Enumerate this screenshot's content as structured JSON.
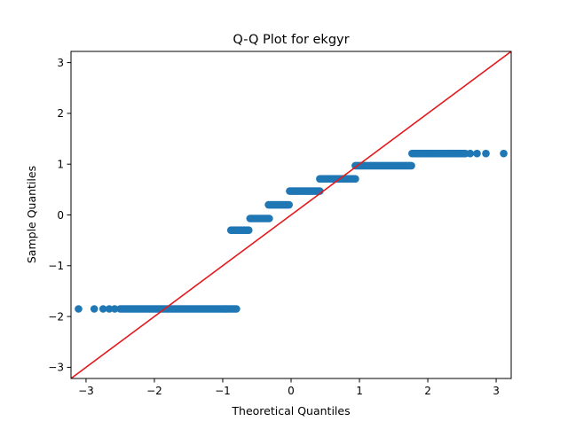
{
  "chart_data": {
    "type": "scatter",
    "title": "Q-Q Plot for ekgyr",
    "xlabel": "Theoretical Quantiles",
    "ylabel": "Sample Quantiles",
    "xlim": [
      -3.22,
      3.22
    ],
    "ylim": [
      -3.22,
      3.22
    ],
    "x_ticks": [
      -3,
      -2,
      -1,
      0,
      1,
      2,
      3
    ],
    "y_ticks": [
      -3,
      -2,
      -1,
      0,
      1,
      2,
      3
    ],
    "grid": false,
    "point_color": "#1f77b4",
    "line_color": "#e41a1c",
    "reference_line": {
      "slope": 1,
      "intercept": 0
    },
    "clusters": [
      {
        "y": -1.85,
        "x_from": -0.8,
        "x_to": -0.83,
        "x_outliers": [
          -3.11,
          -2.88,
          -2.75,
          -2.66,
          -2.58
        ]
      },
      {
        "y": -0.3,
        "x_from": -0.88,
        "x_to": -0.62,
        "x_outliers": []
      },
      {
        "y": -0.07,
        "x_from": -0.6,
        "x_to": -0.32,
        "x_outliers": []
      },
      {
        "y": 0.2,
        "x_from": -0.33,
        "x_to": -0.03,
        "x_outliers": []
      },
      {
        "y": 0.47,
        "x_from": -0.02,
        "x_to": 0.43,
        "x_outliers": []
      },
      {
        "y": 0.71,
        "x_from": 0.42,
        "x_to": 0.95,
        "x_outliers": []
      },
      {
        "y": 0.97,
        "x_from": 0.94,
        "x_to": 1.77,
        "x_outliers": []
      },
      {
        "y": 1.21,
        "x_from": 1.77,
        "x_to": 2.55,
        "x_outliers": [
          2.62,
          2.72,
          2.85,
          3.11
        ]
      }
    ],
    "lower_cluster_x_start": -2.5
  }
}
